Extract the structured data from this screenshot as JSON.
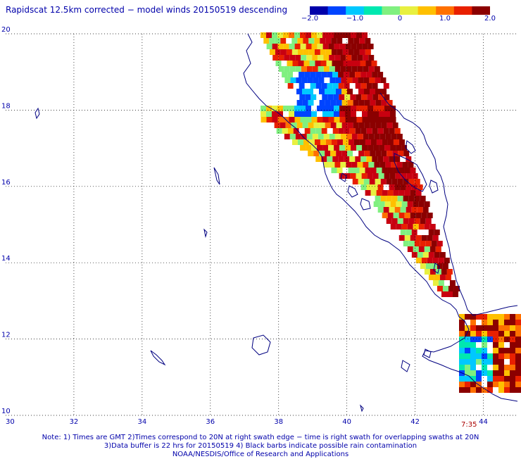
{
  "header": {
    "title": "Rapidscat 12.5km corrected − model winds 20150519 descending"
  },
  "colorbar": {
    "labels": [
      "−2.0",
      "−1.0",
      "0",
      "1.0",
      "2.0"
    ],
    "values": [
      -2.0,
      -1.0,
      0,
      1.0,
      2.0
    ],
    "colors": [
      "#0000aa",
      "#0044ff",
      "#00c8ff",
      "#00e8b0",
      "#80f080",
      "#e8f040",
      "#ffc000",
      "#ff7000",
      "#e82000",
      "#8b0000"
    ]
  },
  "map": {
    "lon_range": [
      30,
      45
    ],
    "lat_range": [
      10,
      20
    ],
    "lon_ticks": [
      "30",
      "32",
      "34",
      "36",
      "38",
      "40",
      "42",
      "44"
    ],
    "lat_ticks": [
      "20",
      "18",
      "16",
      "14",
      "12",
      "10"
    ],
    "grid": "dotted",
    "coastline_color": "#000080"
  },
  "time_label": "7:35",
  "footer": {
    "line1": "Note: 1) Times are GMT 2)Times correspond to 20N at right swath edge − time is right swath for overlapping swaths at 20N",
    "line2": "3)Data buffer is 22 hrs for 20150519 4) Black barbs indicate possible rain contamination",
    "line3": "NOAA/NESDIS/Office of Research and Applications"
  }
}
